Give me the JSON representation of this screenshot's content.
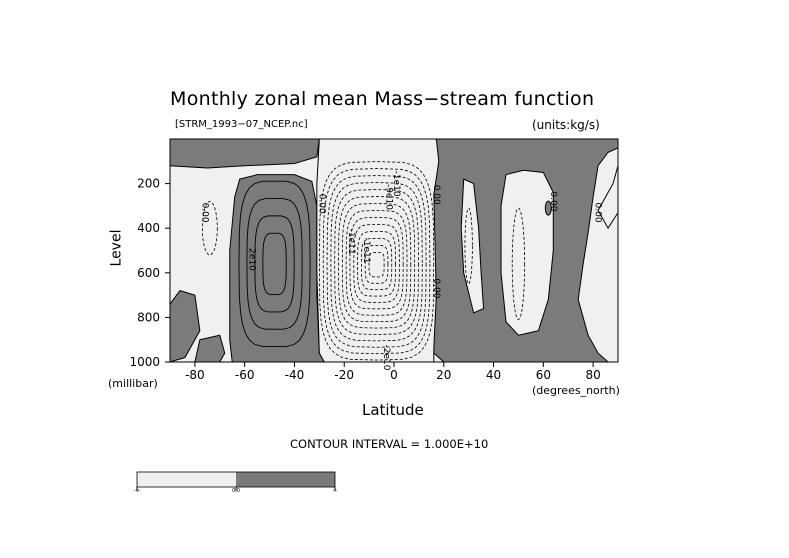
{
  "chart_data": {
    "type": "heatmap",
    "title": "Monthly zonal mean Mass−stream function",
    "subtitle_left": "[STRM_1993−07_NCEP.nc]",
    "subtitle_right": "(units:kg/s)",
    "xlabel": "Latitude",
    "xunit": "(degrees_north)",
    "ylabel": "Level",
    "yunit": "(millibar)",
    "xlim": [
      -90,
      90
    ],
    "ylim": [
      1000,
      0
    ],
    "xticks": [
      -80,
      -60,
      -40,
      -20,
      0,
      20,
      40,
      60,
      80
    ],
    "yticks": [
      200,
      400,
      600,
      800,
      1000
    ],
    "contour_interval_text": "CONTOUR INTERVAL = 1.000E+10",
    "contour_interval": 10000000000.0,
    "contour_labels": [
      {
        "text": "0.00",
        "x": -77,
        "y": 330
      },
      {
        "text": "2e10",
        "x": -58,
        "y": 540
      },
      {
        "text": "0.00",
        "x": -30,
        "y": 290
      },
      {
        "text": "-1e11",
        "x": -18,
        "y": 460
      },
      {
        "text": "-1e11",
        "x": -12,
        "y": 500
      },
      {
        "text": "-1e10",
        "x": 0,
        "y": 200
      },
      {
        "text": "-9e10",
        "x": -3,
        "y": 260
      },
      {
        "text": "0.00",
        "x": 16,
        "y": 250
      },
      {
        "text": "0.00",
        "x": 16,
        "y": 670
      },
      {
        "text": "-2e10",
        "x": -4,
        "y": 980
      },
      {
        "text": "0.00",
        "x": 63,
        "y": 280
      },
      {
        "text": "0.00",
        "x": 81,
        "y": 330
      }
    ],
    "colorbar": {
      "labels": [
        "-∞",
        "0.0",
        "∞"
      ],
      "colors": [
        "#efefef",
        "#7a7a7a"
      ]
    },
    "colors": {
      "negative": "#f0f0f0",
      "positive": "#7b7b7b",
      "line": "#000000"
    }
  }
}
